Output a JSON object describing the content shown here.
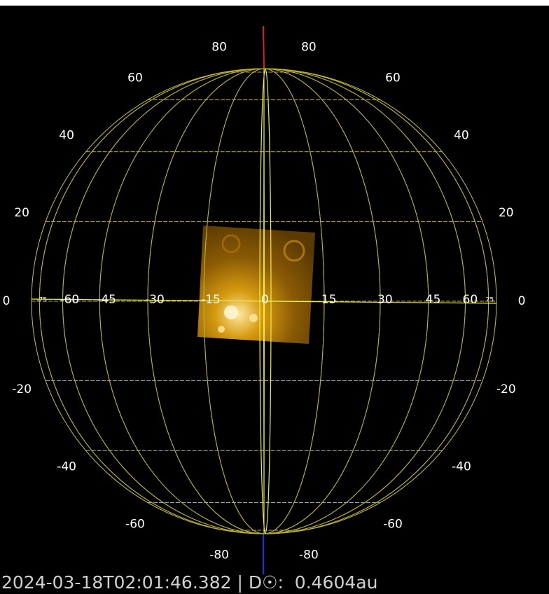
{
  "latitude_labels": [
    80,
    60,
    40,
    20,
    0,
    -20,
    -40,
    -60,
    -80
  ],
  "longitude_labels": [
    -75,
    -60,
    -45,
    -30,
    -15,
    0,
    15,
    30,
    45,
    60,
    75
  ],
  "status": "2024-03-18T02:01:46.382 | D☉:  0.4604au"
}
